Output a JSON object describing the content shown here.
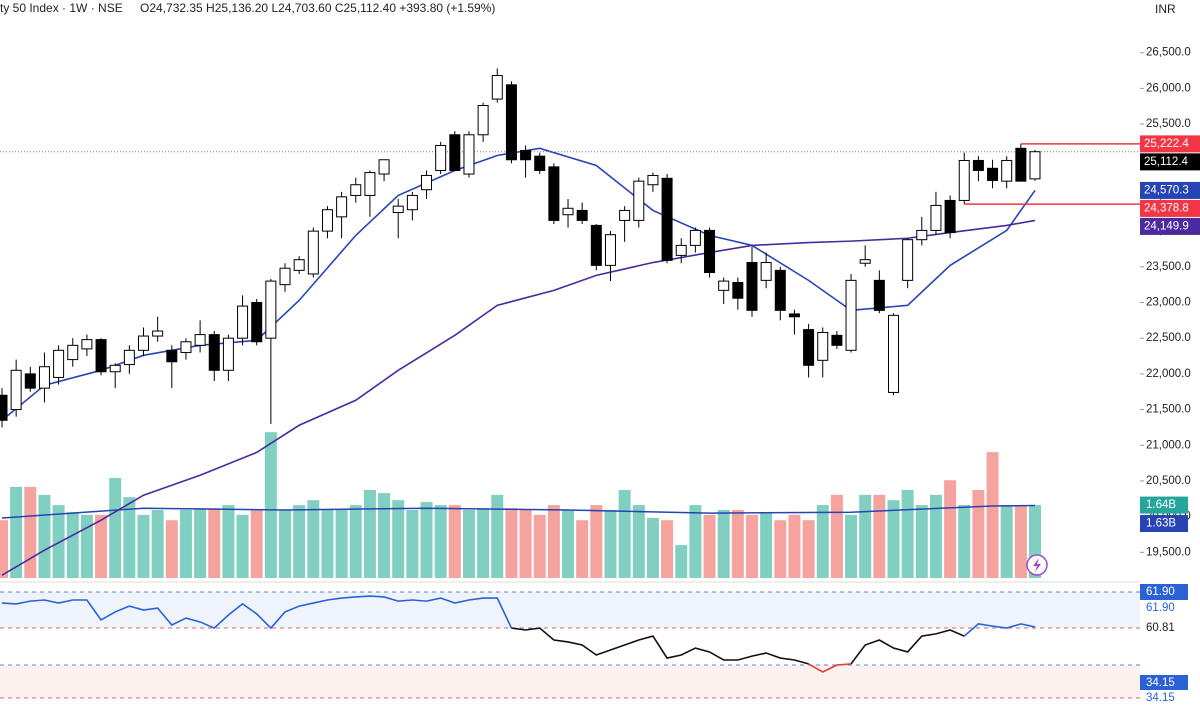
{
  "chart_data": {
    "type": "candlestick",
    "symbol": "ty 50 Index · 1W · NSE",
    "ohlc_text": "O24,732.35  H25,136.20  L24,703.60  C25,112.40  +393.80 (+1.59%)",
    "currency": "INR",
    "ylim": [
      19000,
      27000
    ],
    "yticks": [
      {
        "value": 19500,
        "label": "19,500.0"
      },
      {
        "value": 20000,
        "label": "20,000.0"
      },
      {
        "value": 20500,
        "label": "20,500.0"
      },
      {
        "value": 21000,
        "label": "21,000.0"
      },
      {
        "value": 21500,
        "label": "21,500.0"
      },
      {
        "value": 22000,
        "label": "22,000.0"
      },
      {
        "value": 22500,
        "label": "22,500.0"
      },
      {
        "value": 23000,
        "label": "23,000.0"
      },
      {
        "value": 23500,
        "label": "23,500.0"
      },
      {
        "value": 24000,
        "label": "24,000.0"
      },
      {
        "value": 24500,
        "label": "24,500.0"
      },
      {
        "value": 25000,
        "label": "25,000.0"
      },
      {
        "value": 25500,
        "label": "25,500.0"
      },
      {
        "value": 26000,
        "label": "26,000.0"
      },
      {
        "value": 26500,
        "label": "26,500.0"
      }
    ],
    "open": [
      21700,
      21500,
      22000,
      21800,
      21950,
      22200,
      22350,
      22480,
      22030,
      22130,
      22330,
      22530,
      22330,
      22300,
      22400,
      22550,
      22050,
      22500,
      23000,
      22500,
      23250,
      23450,
      23400,
      24000,
      24200,
      24500,
      24500,
      24800,
      24260,
      24300,
      24580,
      24850,
      25350,
      24800,
      25350,
      25850,
      26050,
      25130,
      25050,
      24900,
      24230,
      24290,
      24080,
      23520,
      24150,
      24150,
      24650,
      24740,
      23660,
      23800,
      24010,
      23170,
      23280,
      23560,
      23310,
      23450,
      22840,
      22620,
      22190,
      22540,
      22330,
      23550,
      23310,
      21740,
      23310,
      23880,
      24010,
      24430,
      24430,
      24990,
      24880,
      24700,
      25160,
      24732.35
    ],
    "high": [
      21800,
      22200,
      22100,
      22300,
      22400,
      22500,
      22550,
      22500,
      22150,
      22400,
      22650,
      22800,
      22400,
      22500,
      22750,
      22600,
      22550,
      23100,
      23050,
      23330,
      23550,
      23650,
      24050,
      24350,
      24550,
      24750,
      24850,
      25000,
      24450,
      24550,
      24850,
      25250,
      25400,
      25400,
      25800,
      26280,
      26100,
      25200,
      25100,
      24950,
      24450,
      24400,
      24100,
      24000,
      24350,
      24750,
      24820,
      24800,
      23900,
      24050,
      24050,
      23350,
      23350,
      23780,
      23700,
      23500,
      22900,
      22700,
      22650,
      22600,
      23400,
      23800,
      23450,
      22850,
      23900,
      24200,
      24550,
      24500,
      25100,
      25050,
      25000,
      25050,
      25222.4,
      25136.2
    ],
    "low": [
      21250,
      21400,
      21750,
      21600,
      21850,
      22100,
      22250,
      21980,
      21800,
      22000,
      22250,
      22450,
      21800,
      22200,
      22300,
      21900,
      21900,
      22400,
      22400,
      21300,
      23150,
      23400,
      23350,
      23900,
      23900,
      24400,
      24200,
      24700,
      23900,
      24150,
      24450,
      24800,
      24850,
      24750,
      25250,
      25800,
      24950,
      24750,
      24800,
      24100,
      24050,
      24100,
      23450,
      23300,
      23850,
      24050,
      24550,
      23550,
      23550,
      23700,
      23350,
      22980,
      22900,
      22800,
      23200,
      22750,
      22550,
      21950,
      21950,
      22350,
      22300,
      23500,
      22850,
      21700,
      23200,
      23800,
      23950,
      23900,
      24378.8,
      24700,
      24600,
      24600,
      24700,
      24703.6
    ],
    "close": [
      21350,
      22050,
      21800,
      22100,
      22330,
      22400,
      22480,
      22030,
      22120,
      22330,
      22530,
      22600,
      22170,
      22450,
      22550,
      22050,
      22500,
      22950,
      22450,
      23300,
      23480,
      23600,
      24000,
      24300,
      24480,
      24650,
      24820,
      25000,
      24350,
      24500,
      24780,
      25200,
      24850,
      25350,
      25760,
      26180,
      25000,
      25000,
      24850,
      24150,
      24320,
      24150,
      23520,
      23950,
      24290,
      24700,
      24780,
      23590,
      23800,
      24010,
      23420,
      23300,
      23060,
      22890,
      23560,
      22890,
      22800,
      22120,
      22580,
      22400,
      23310,
      23600,
      22890,
      22820,
      23880,
      24010,
      24360,
      23980,
      24990,
      24850,
      24710,
      24990,
      24700,
      25112.4
    ],
    "up_color": "#ffffff",
    "down_color": "#000000",
    "moving_averages": [
      {
        "color": "#2744b5",
        "x": [
          0,
          3,
          7,
          10,
          14,
          18,
          21,
          25,
          28,
          32,
          35,
          38,
          42,
          46,
          50,
          53,
          57,
          60,
          64,
          67,
          71,
          73
        ],
        "values": [
          21350,
          21840,
          22050,
          22260,
          22400,
          22470,
          23030,
          23940,
          24500,
          24850,
          25060,
          25160,
          24920,
          24290,
          23940,
          23800,
          23310,
          22890,
          22960,
          23520,
          24010,
          24570.3
        ]
      },
      {
        "color": "#4a2a9e",
        "x": [
          0,
          3,
          7,
          10,
          14,
          18,
          21,
          25,
          28,
          32,
          35,
          39,
          42,
          46,
          50,
          53,
          57,
          60,
          64,
          67,
          71,
          73
        ],
        "values": [
          19180,
          19530,
          19950,
          20300,
          20580,
          20900,
          21280,
          21630,
          22050,
          22540,
          22960,
          23170,
          23380,
          23560,
          23700,
          23800,
          23840,
          23860,
          23900,
          23980,
          24080,
          24149.9
        ]
      }
    ],
    "price_labels": [
      {
        "value": 25222.4,
        "label": "25,222.4",
        "bg": "#f23645",
        "fg": "#ffffff"
      },
      {
        "value": 25112.4,
        "label": "25,112.4",
        "bg": "#000000",
        "fg": "#ffffff"
      },
      {
        "value": 24570.3,
        "label": "24,570.3",
        "bg": "#2744b5",
        "fg": "#ffffff"
      },
      {
        "value": 24378.8,
        "label": "24,378.8",
        "bg": "#f23645",
        "fg": "#ffffff"
      },
      {
        "value": 24149.9,
        "label": "24,149.9",
        "bg": "#4a2a9e",
        "fg": "#ffffff"
      }
    ],
    "volume": {
      "ylim": [
        0,
        13
      ],
      "up_color": "#80cfc0",
      "down_color": "#f5a39e",
      "values": [
        1.3,
        2.05,
        2.05,
        1.87,
        1.64,
        1.48,
        1.42,
        1.42,
        2.25,
        1.82,
        1.42,
        1.53,
        1.3,
        1.53,
        1.57,
        1.57,
        1.64,
        1.42,
        1.53,
        3.28,
        1.53,
        1.64,
        1.75,
        1.53,
        1.53,
        1.64,
        1.98,
        1.91,
        1.75,
        1.53,
        1.71,
        1.64,
        1.64,
        1.53,
        1.57,
        1.87,
        1.57,
        1.53,
        1.42,
        1.64,
        1.53,
        1.3,
        1.64,
        1.53,
        1.98,
        1.64,
        1.35,
        1.3,
        0.74,
        1.64,
        1.42,
        1.53,
        1.53,
        1.42,
        1.48,
        1.3,
        1.42,
        1.3,
        1.64,
        1.87,
        1.42,
        1.87,
        1.87,
        1.75,
        1.98,
        1.64,
        1.87,
        2.2,
        1.64,
        1.98,
        2.83,
        1.64,
        1.64,
        1.64
      ],
      "last_label": "1.64B",
      "label_bg": "#26a69a"
    },
    "volume_ma": {
      "color": "#2744b5",
      "x": [
        0,
        10,
        20,
        30,
        40,
        50,
        60,
        70,
        73
      ],
      "values": [
        1.35,
        1.57,
        1.53,
        1.57,
        1.53,
        1.46,
        1.48,
        1.62,
        1.63
      ],
      "last_label": "1.63B",
      "label_bg": "#2744b5"
    },
    "rsi": {
      "ylim": [
        30,
        75
      ],
      "series": [
        {
          "color": "#2a62d6",
          "values": [
            68.5,
            68.2,
            69.2,
            69.6,
            68.5,
            69.6,
            69.6,
            62.4,
            65.3,
            67.4,
            66.0,
            66.7,
            60.6,
            63.1,
            61.7,
            59.5,
            64.2,
            68.2,
            64.6,
            59.5,
            65.3,
            67.4,
            68.5,
            69.6,
            70.3,
            70.7,
            71.0,
            70.7,
            69.2,
            69.6,
            69.2,
            70.3,
            68.5,
            69.6,
            70.3,
            70.3,
            59.5,
            null,
            null,
            null,
            null,
            null,
            null,
            null,
            null,
            null,
            null,
            null,
            null,
            null,
            null,
            null,
            null,
            null,
            null,
            null,
            null,
            null,
            null,
            null,
            null,
            null,
            null,
            null,
            null,
            null,
            null,
            null,
            56.6,
            61.0,
            60.2,
            59.5,
            61.0,
            59.9
          ]
        },
        {
          "color": "#111111",
          "values": [
            null,
            null,
            null,
            null,
            null,
            null,
            null,
            null,
            null,
            null,
            null,
            null,
            null,
            null,
            null,
            null,
            null,
            null,
            null,
            null,
            null,
            null,
            null,
            null,
            null,
            null,
            null,
            null,
            null,
            null,
            null,
            null,
            null,
            null,
            null,
            null,
            59.5,
            58.8,
            59.5,
            55.2,
            54.5,
            53.4,
            49.8,
            51.6,
            53.4,
            55.2,
            56.6,
            48.7,
            49.8,
            52.3,
            50.9,
            48.0,
            48.0,
            49.4,
            50.5,
            48.7,
            48.0,
            46.6,
            null,
            null,
            46.6,
            53.4,
            55.2,
            52.3,
            50.9,
            56.6,
            57.4,
            58.8,
            56.6,
            null,
            null,
            null,
            null,
            null
          ]
        },
        {
          "color": "#e53935",
          "values": [
            null,
            null,
            null,
            null,
            null,
            null,
            null,
            null,
            null,
            null,
            null,
            null,
            null,
            null,
            null,
            null,
            null,
            null,
            null,
            null,
            null,
            null,
            null,
            null,
            null,
            null,
            null,
            null,
            null,
            null,
            null,
            null,
            null,
            null,
            null,
            null,
            null,
            null,
            null,
            null,
            null,
            null,
            null,
            null,
            null,
            null,
            null,
            null,
            null,
            null,
            null,
            null,
            null,
            null,
            null,
            null,
            null,
            46.6,
            43.7,
            46.2,
            46.6,
            null,
            null,
            null,
            null,
            null,
            null,
            null,
            null,
            null,
            null,
            null,
            null,
            null
          ]
        }
      ],
      "labels": [
        {
          "label": "61.90",
          "bg": "#2a62d6",
          "fg": "#ffffff"
        },
        {
          "label": "61.90",
          "bg": "#ffffff",
          "fg": "#2a62d6"
        },
        {
          "label": "60.81",
          "bg": "#ffffff",
          "fg": "#222222"
        },
        {
          "label": "34.15",
          "bg": "#2a62d6",
          "fg": "#ffffff"
        },
        {
          "label": "34.15",
          "bg": "#ffffff",
          "fg": "#2a62d6"
        }
      ]
    }
  }
}
